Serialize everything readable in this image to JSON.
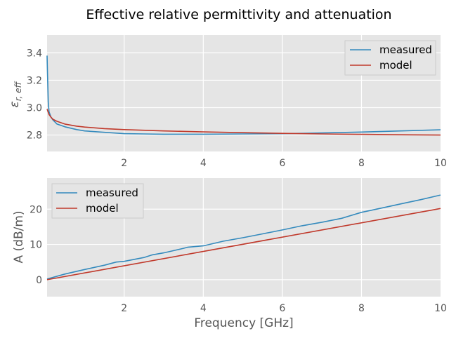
{
  "figure_title": "Effective relative permittivity and attenuation",
  "colors": {
    "measured": "#348ABD",
    "model": "#C0392B",
    "panel_bg": "#E5E5E5",
    "grid": "#FFFFFF"
  },
  "chart_data": [
    {
      "type": "line",
      "title": "",
      "xlabel": "",
      "ylabel": "ε_r,eff",
      "ylabel_main": "ε",
      "ylabel_sub": "r, eff",
      "xlim": [
        0.05,
        10
      ],
      "ylim": [
        2.68,
        3.53
      ],
      "xticks": [
        2,
        4,
        6,
        8,
        10
      ],
      "xtick_labels": [
        "2",
        "4",
        "6",
        "8",
        "10"
      ],
      "yticks": [
        2.8,
        3.0,
        3.2,
        3.4
      ],
      "ytick_labels": [
        "2.8",
        "3.0",
        "3.2",
        "3.4"
      ],
      "grid": true,
      "legend_position": "top-right",
      "series": [
        {
          "name": "measured",
          "x": [
            0.05,
            0.06,
            0.08,
            0.1,
            0.15,
            0.2,
            0.3,
            0.5,
            0.8,
            1.0,
            1.5,
            2.0,
            2.5,
            3.0,
            4.0,
            5.0,
            6.0,
            6.5,
            7.0,
            8.0,
            9.0,
            10.0
          ],
          "y": [
            3.38,
            3.25,
            3.04,
            2.97,
            2.93,
            2.91,
            2.88,
            2.86,
            2.84,
            2.83,
            2.82,
            2.81,
            2.808,
            2.806,
            2.806,
            2.808,
            2.81,
            2.812,
            2.815,
            2.822,
            2.83,
            2.838
          ]
        },
        {
          "name": "model",
          "x": [
            0.05,
            0.1,
            0.15,
            0.2,
            0.3,
            0.5,
            0.8,
            1.0,
            1.5,
            2.0,
            3.0,
            4.0,
            5.0,
            6.0,
            7.0,
            8.0,
            9.0,
            10.0
          ],
          "y": [
            2.99,
            2.95,
            2.93,
            2.915,
            2.9,
            2.88,
            2.865,
            2.858,
            2.847,
            2.84,
            2.83,
            2.823,
            2.817,
            2.812,
            2.808,
            2.805,
            2.802,
            2.8
          ]
        }
      ]
    },
    {
      "type": "line",
      "title": "",
      "xlabel": "Frequency [GHz]",
      "ylabel": "A (dB/m)",
      "xlim": [
        0.05,
        10
      ],
      "ylim": [
        -4.8,
        28.8
      ],
      "xticks": [
        2,
        4,
        6,
        8,
        10
      ],
      "xtick_labels": [
        "2",
        "4",
        "6",
        "8",
        "10"
      ],
      "yticks": [
        0,
        10,
        20
      ],
      "ytick_labels": [
        "0",
        "10",
        "20"
      ],
      "grid": true,
      "legend_position": "top-left",
      "series": [
        {
          "name": "measured",
          "x": [
            0.05,
            0.5,
            1.0,
            1.5,
            1.8,
            2.0,
            2.5,
            2.7,
            3.0,
            3.5,
            3.6,
            4.0,
            4.5,
            5.0,
            5.5,
            6.0,
            6.5,
            7.0,
            7.5,
            8.0,
            8.5,
            9.0,
            9.5,
            10.0
          ],
          "y": [
            0.2,
            1.6,
            2.9,
            4.1,
            5.0,
            5.2,
            6.3,
            7.0,
            7.6,
            8.9,
            9.2,
            9.6,
            10.9,
            11.9,
            13.0,
            14.1,
            15.3,
            16.3,
            17.4,
            19.1,
            20.3,
            21.5,
            22.7,
            24.0
          ]
        },
        {
          "name": "model",
          "x": [
            0.05,
            10.0
          ],
          "y": [
            0.0,
            20.2
          ]
        }
      ]
    }
  ]
}
